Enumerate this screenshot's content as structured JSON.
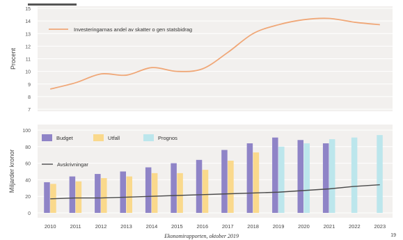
{
  "chart_data": [
    {
      "type": "line",
      "ylabel": "Procent",
      "ylim": [
        7,
        15
      ],
      "yticks": [
        7,
        8,
        9,
        10,
        11,
        12,
        13,
        14,
        15
      ],
      "grid": true,
      "legend_position": "top-left",
      "x": [
        2010,
        2011,
        2012,
        2013,
        2014,
        2015,
        2016,
        2017,
        2018,
        2019,
        2020,
        2021,
        2022,
        2023
      ],
      "series": [
        {
          "name": "Investeringarnas andel av skatter o gen statsbidrag",
          "color": "#F0A777",
          "values": [
            8.6,
            9.1,
            9.8,
            9.7,
            10.3,
            10.0,
            10.2,
            11.5,
            13.0,
            13.7,
            14.1,
            14.2,
            13.9,
            13.7
          ]
        }
      ]
    },
    {
      "type": "bar",
      "ylabel": "Miljarder kronor",
      "ylim": [
        0,
        100
      ],
      "yticks": [
        0,
        20,
        40,
        60,
        80,
        100
      ],
      "grid": true,
      "legend_position": "top-left",
      "categories": [
        "2010",
        "2011",
        "2012",
        "2013",
        "2014",
        "2015",
        "2016",
        "2017",
        "2018",
        "2019",
        "2020",
        "2021",
        "2022",
        "2023"
      ],
      "series": [
        {
          "name": "Budget",
          "color": "#8F84C7",
          "values": [
            37,
            44,
            47,
            50,
            55,
            60,
            64,
            76,
            84,
            91,
            88,
            84,
            null,
            null
          ]
        },
        {
          "name": "Utfall",
          "color": "#FAD98C",
          "values": [
            35,
            38,
            42,
            44,
            48,
            48,
            52,
            63,
            73,
            null,
            null,
            null,
            null,
            null
          ]
        },
        {
          "name": "Prognos",
          "color": "#BCE6EC",
          "values": [
            null,
            null,
            null,
            null,
            null,
            null,
            null,
            null,
            null,
            80,
            84,
            89,
            91,
            94
          ]
        }
      ],
      "line_series": [
        {
          "name": "Avskrivningar",
          "color": "#4a4a4a",
          "values": [
            17,
            18,
            18,
            19,
            20,
            21,
            22,
            23,
            24,
            25,
            27,
            29,
            32,
            34
          ]
        }
      ]
    }
  ],
  "footer": {
    "text": "Ekonomirapporten, oktober 2019",
    "page": "19"
  }
}
